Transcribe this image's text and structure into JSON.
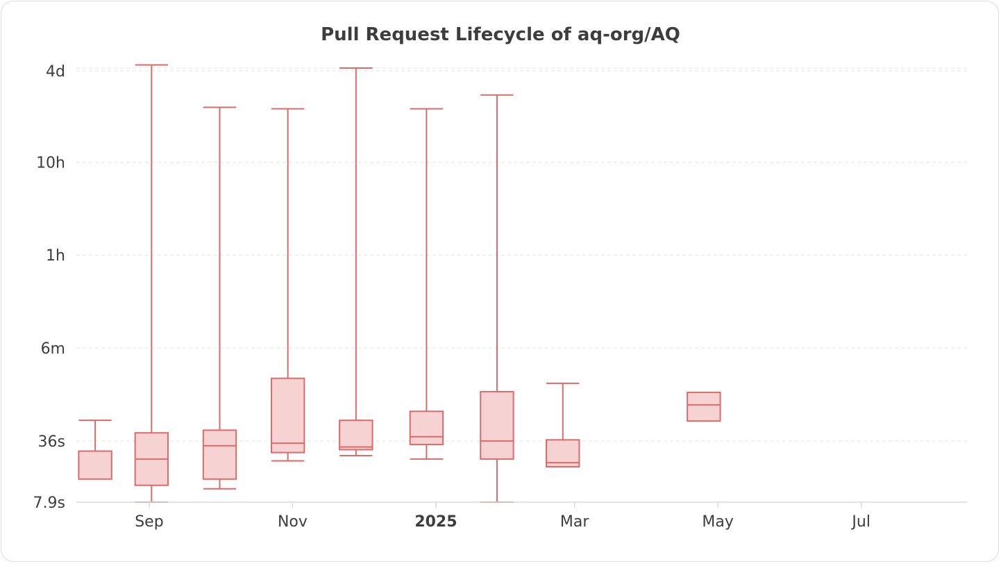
{
  "chart_data": {
    "type": "box",
    "title": "Pull Request Lifecycle of aq-org/AQ",
    "y_scale": "log",
    "y_range_seconds": [
      7.9,
      370000
    ],
    "y_ticks": [
      {
        "label": "7.9s",
        "seconds": 7.9
      },
      {
        "label": "36s",
        "seconds": 36
      },
      {
        "label": "6m",
        "seconds": 360
      },
      {
        "label": "1h",
        "seconds": 3600
      },
      {
        "label": "10h",
        "seconds": 36000
      },
      {
        "label": "4d",
        "seconds": 345600
      }
    ],
    "x_range": [
      "2024-08-01",
      "2025-08-15"
    ],
    "x_ticks": [
      {
        "label": "Sep",
        "date": "2024-09-01",
        "bold": false
      },
      {
        "label": "Nov",
        "date": "2024-11-01",
        "bold": false
      },
      {
        "label": "2025",
        "date": "2025-01-01",
        "bold": true
      },
      {
        "label": "Mar",
        "date": "2025-03-01",
        "bold": false
      },
      {
        "label": "May",
        "date": "2025-05-01",
        "bold": false
      },
      {
        "label": "Jul",
        "date": "2025-07-01",
        "bold": false
      }
    ],
    "grid": true,
    "series": [
      {
        "start": "2024-08-02",
        "end": "2024-08-16",
        "whisker_low": 14,
        "q1": 14,
        "median": 28,
        "q3": 28,
        "whisker_high": 60
      },
      {
        "start": "2024-08-26",
        "end": "2024-09-09",
        "whisker_low": 7.9,
        "q1": 12,
        "median": 23,
        "q3": 44,
        "whisker_high": 400000
      },
      {
        "start": "2024-09-24",
        "end": "2024-10-08",
        "whisker_low": 11,
        "q1": 14,
        "median": 32,
        "q3": 47,
        "whisker_high": 140000
      },
      {
        "start": "2024-10-23",
        "end": "2024-11-06",
        "whisker_low": 22,
        "q1": 27,
        "median": 34,
        "q3": 170,
        "whisker_high": 135000
      },
      {
        "start": "2024-11-21",
        "end": "2024-12-05",
        "whisker_low": 25,
        "q1": 29,
        "median": 31,
        "q3": 60,
        "whisker_high": 370000
      },
      {
        "start": "2024-12-21",
        "end": "2025-01-04",
        "whisker_low": 23,
        "q1": 33,
        "median": 40,
        "q3": 75,
        "whisker_high": 135000
      },
      {
        "start": "2025-01-20",
        "end": "2025-02-03",
        "whisker_low": 7.9,
        "q1": 23,
        "median": 36,
        "q3": 122,
        "whisker_high": 190000
      },
      {
        "start": "2025-02-17",
        "end": "2025-03-03",
        "whisker_low": 19,
        "q1": 19,
        "median": 21,
        "q3": 37,
        "whisker_high": 150
      },
      {
        "start": "2025-04-18",
        "end": "2025-05-02",
        "whisker_low": 59,
        "q1": 59,
        "median": 88,
        "q3": 120,
        "whisker_high": 120
      }
    ]
  }
}
